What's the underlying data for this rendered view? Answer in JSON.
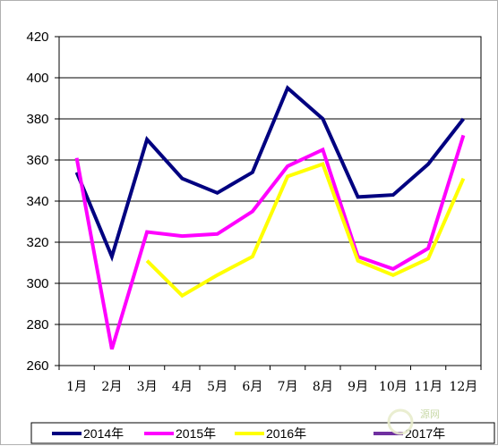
{
  "chart_data": {
    "type": "line",
    "title": "",
    "xlabel": "",
    "ylabel": "",
    "categories": [
      "1月",
      "2月",
      "3月",
      "4月",
      "5月",
      "6月",
      "7月",
      "8月",
      "9月",
      "10月",
      "11月",
      "12月"
    ],
    "ylim": [
      260,
      420
    ],
    "yticks": [
      260,
      280,
      300,
      320,
      340,
      360,
      380,
      400,
      420
    ],
    "grid": "horizontal",
    "legend_position": "bottom",
    "series": [
      {
        "name": "2014年",
        "color": "#000080",
        "values": [
          354,
          313,
          370,
          351,
          344,
          354,
          395,
          380,
          342,
          343,
          358,
          380
        ]
      },
      {
        "name": "2015年",
        "color": "#ff00ff",
        "values": [
          361,
          268,
          325,
          323,
          324,
          335,
          357,
          365,
          313,
          307,
          317,
          372
        ]
      },
      {
        "name": "2016年",
        "color": "#ffff00",
        "values": [
          null,
          null,
          311,
          294,
          304,
          313,
          352,
          358,
          311,
          304,
          312,
          351
        ]
      },
      {
        "name": "2017年",
        "color": "#7030a0",
        "values": [
          null,
          null,
          null,
          null,
          null,
          null,
          null,
          null,
          null,
          null,
          null,
          null
        ]
      }
    ]
  },
  "watermark": "源网"
}
